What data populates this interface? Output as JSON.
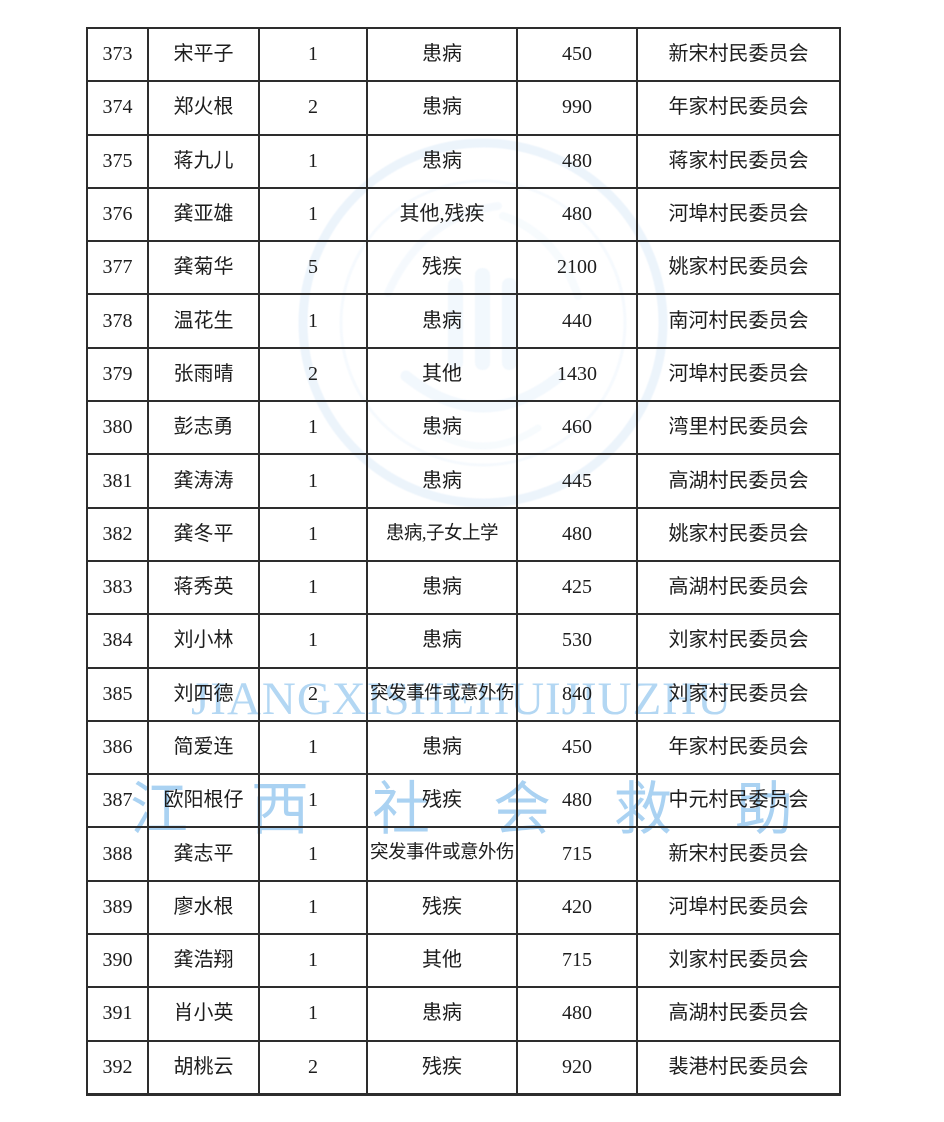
{
  "watermark": {
    "latin_text": "JIANGXISHEHUIJIUZHU",
    "cjk_text": "江西社会救助",
    "text_color_latin": "#b3d7f3",
    "text_color_cjk": "#aad2f2",
    "seal_color": "#c7def4"
  },
  "table": {
    "rows": [
      {
        "no": "373",
        "name": "宋平子",
        "count": "1",
        "reason": "患病",
        "amount": "450",
        "committee": "新宋村民委员会"
      },
      {
        "no": "374",
        "name": "郑火根",
        "count": "2",
        "reason": "患病",
        "amount": "990",
        "committee": "年家村民委员会"
      },
      {
        "no": "375",
        "name": "蒋九儿",
        "count": "1",
        "reason": "患病",
        "amount": "480",
        "committee": "蒋家村民委员会"
      },
      {
        "no": "376",
        "name": "龚亚雄",
        "count": "1",
        "reason": "其他,残疾",
        "amount": "480",
        "committee": "河埠村民委员会"
      },
      {
        "no": "377",
        "name": "龚菊华",
        "count": "5",
        "reason": "残疾",
        "amount": "2100",
        "committee": "姚家村民委员会"
      },
      {
        "no": "378",
        "name": "温花生",
        "count": "1",
        "reason": "患病",
        "amount": "440",
        "committee": "南河村民委员会"
      },
      {
        "no": "379",
        "name": "张雨晴",
        "count": "2",
        "reason": "其他",
        "amount": "1430",
        "committee": "河埠村民委员会"
      },
      {
        "no": "380",
        "name": "彭志勇",
        "count": "1",
        "reason": "患病",
        "amount": "460",
        "committee": "湾里村民委员会"
      },
      {
        "no": "381",
        "name": "龚涛涛",
        "count": "1",
        "reason": "患病",
        "amount": "445",
        "committee": "高湖村民委员会"
      },
      {
        "no": "382",
        "name": "龚冬平",
        "count": "1",
        "reason": "患病,子女上学",
        "amount": "480",
        "committee": "姚家村民委员会"
      },
      {
        "no": "383",
        "name": "蒋秀英",
        "count": "1",
        "reason": "患病",
        "amount": "425",
        "committee": "高湖村民委员会"
      },
      {
        "no": "384",
        "name": "刘小林",
        "count": "1",
        "reason": "患病",
        "amount": "530",
        "committee": "刘家村民委员会"
      },
      {
        "no": "385",
        "name": "刘四德",
        "count": "2",
        "reason": "突发事件或意外伤",
        "amount": "840",
        "committee": "刘家村民委员会"
      },
      {
        "no": "386",
        "name": "简爱连",
        "count": "1",
        "reason": "患病",
        "amount": "450",
        "committee": "年家村民委员会"
      },
      {
        "no": "387",
        "name": "欧阳根仔",
        "count": "1",
        "reason": "残疾",
        "amount": "480",
        "committee": "中元村民委员会"
      },
      {
        "no": "388",
        "name": "龚志平",
        "count": "1",
        "reason": "突发事件或意外伤",
        "amount": "715",
        "committee": "新宋村民委员会"
      },
      {
        "no": "389",
        "name": "廖水根",
        "count": "1",
        "reason": "残疾",
        "amount": "420",
        "committee": "河埠村民委员会"
      },
      {
        "no": "390",
        "name": "龚浩翔",
        "count": "1",
        "reason": "其他",
        "amount": "715",
        "committee": "刘家村民委员会"
      },
      {
        "no": "391",
        "name": "肖小英",
        "count": "1",
        "reason": "患病",
        "amount": "480",
        "committee": "高湖村民委员会"
      },
      {
        "no": "392",
        "name": "胡桃云",
        "count": "2",
        "reason": "残疾",
        "amount": "920",
        "committee": "裴港村民委员会"
      }
    ]
  }
}
